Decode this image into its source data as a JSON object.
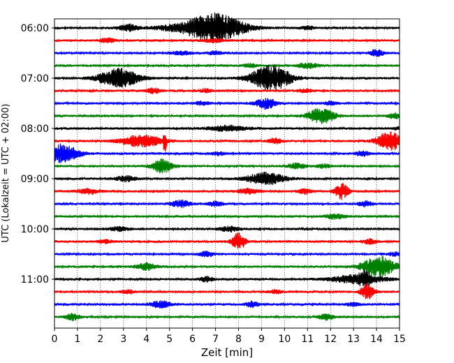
{
  "chart_data": {
    "type": "line",
    "title": "",
    "xlabel": "Zeit  [min]",
    "ylabel": "UTC (Lokalzeit = UTC + 02:00)",
    "xlim": [
      0,
      15
    ],
    "x_ticks": [
      "0",
      "1",
      "2",
      "3",
      "4",
      "5",
      "6",
      "7",
      "8",
      "9",
      "10",
      "11",
      "12",
      "13",
      "14",
      "15"
    ],
    "y_tick_labels": [
      "06:00",
      "07:00",
      "08:00",
      "09:00",
      "10:00",
      "11:00"
    ],
    "grid": "vertical dotted",
    "line_colors": [
      "#000000",
      "#ff0000",
      "#0000ff",
      "#008000"
    ],
    "traces": [
      {
        "start": "06:00",
        "color": "#000000",
        "bursts": [
          [
            3.2,
            0.3,
            0.4
          ],
          [
            6.9,
            0.9,
            1.7
          ],
          [
            4.8,
            0.4,
            0.2
          ],
          [
            11.0,
            0.2,
            0.2
          ]
        ]
      },
      {
        "start": "06:15",
        "color": "#ff0000",
        "bursts": [
          [
            2.3,
            0.2,
            0.3
          ],
          [
            6.9,
            0.3,
            0.2
          ]
        ]
      },
      {
        "start": "06:30",
        "color": "#0000ff",
        "bursts": [
          [
            5.5,
            0.3,
            0.2
          ],
          [
            7.0,
            0.2,
            0.2
          ],
          [
            14.0,
            0.2,
            0.4
          ]
        ]
      },
      {
        "start": "06:45",
        "color": "#008000",
        "bursts": [
          [
            11.0,
            0.3,
            0.3
          ],
          [
            8.5,
            0.2,
            0.2
          ]
        ]
      },
      {
        "start": "07:00",
        "color": "#000000",
        "bursts": [
          [
            2.8,
            0.6,
            1.1
          ],
          [
            9.4,
            0.6,
            1.5
          ]
        ]
      },
      {
        "start": "07:15",
        "color": "#ff0000",
        "bursts": [
          [
            4.3,
            0.2,
            0.3
          ],
          [
            6.6,
            0.2,
            0.2
          ],
          [
            10.9,
            0.2,
            0.2
          ]
        ]
      },
      {
        "start": "07:30",
        "color": "#0000ff",
        "bursts": [
          [
            6.4,
            0.2,
            0.2
          ],
          [
            9.2,
            0.3,
            0.6
          ],
          [
            12.0,
            0.2,
            0.2
          ]
        ]
      },
      {
        "start": "07:45",
        "color": "#008000",
        "bursts": [
          [
            11.6,
            0.4,
            0.9
          ],
          [
            14.8,
            0.2,
            0.3
          ]
        ]
      },
      {
        "start": "08:00",
        "color": "#000000",
        "bursts": [
          [
            7.5,
            0.6,
            0.3
          ],
          [
            14.9,
            0.1,
            0.2
          ]
        ]
      },
      {
        "start": "08:15",
        "color": "#ff0000",
        "bursts": [
          [
            3.8,
            0.6,
            0.7
          ],
          [
            4.8,
            0.05,
            1.3
          ],
          [
            9.6,
            0.2,
            0.3
          ],
          [
            14.6,
            0.4,
            1.1
          ]
        ]
      },
      {
        "start": "08:30",
        "color": "#0000ff",
        "bursts": [
          [
            0.3,
            0.5,
            1.1
          ],
          [
            7.1,
            0.2,
            0.2
          ],
          [
            13.4,
            0.2,
            0.3
          ]
        ]
      },
      {
        "start": "08:45",
        "color": "#008000",
        "bursts": [
          [
            4.7,
            0.3,
            0.8
          ],
          [
            10.5,
            0.3,
            0.3
          ],
          [
            11.7,
            0.2,
            0.2
          ]
        ]
      },
      {
        "start": "09:00",
        "color": "#000000",
        "bursts": [
          [
            3.1,
            0.3,
            0.3
          ],
          [
            9.2,
            0.6,
            0.7
          ]
        ]
      },
      {
        "start": "09:15",
        "color": "#ff0000",
        "bursts": [
          [
            1.5,
            0.3,
            0.3
          ],
          [
            12.5,
            0.2,
            0.9
          ],
          [
            10.9,
            0.2,
            0.3
          ],
          [
            8.4,
            0.3,
            0.3
          ]
        ]
      },
      {
        "start": "09:30",
        "color": "#0000ff",
        "bursts": [
          [
            5.5,
            0.3,
            0.4
          ],
          [
            7.0,
            0.2,
            0.3
          ],
          [
            13.5,
            0.2,
            0.3
          ]
        ]
      },
      {
        "start": "09:45",
        "color": "#008000",
        "bursts": [
          [
            12.2,
            0.3,
            0.3
          ]
        ]
      },
      {
        "start": "10:00",
        "color": "#000000",
        "bursts": [
          [
            7.6,
            0.3,
            0.3
          ],
          [
            2.8,
            0.3,
            0.2
          ]
        ]
      },
      {
        "start": "10:15",
        "color": "#ff0000",
        "bursts": [
          [
            8.0,
            0.2,
            1.0
          ],
          [
            13.7,
            0.2,
            0.3
          ],
          [
            2.2,
            0.2,
            0.2
          ]
        ]
      },
      {
        "start": "10:30",
        "color": "#0000ff",
        "bursts": [
          [
            6.6,
            0.2,
            0.3
          ],
          [
            14.8,
            0.2,
            0.2
          ]
        ]
      },
      {
        "start": "10:45",
        "color": "#008000",
        "bursts": [
          [
            4.0,
            0.3,
            0.4
          ],
          [
            14.1,
            0.5,
            1.2
          ]
        ]
      },
      {
        "start": "11:00",
        "color": "#000000",
        "bursts": [
          [
            6.6,
            0.2,
            0.3
          ],
          [
            13.2,
            0.8,
            0.5
          ],
          [
            13.5,
            0.15,
            0.7
          ]
        ]
      },
      {
        "start": "11:15",
        "color": "#ff0000",
        "bursts": [
          [
            13.6,
            0.2,
            0.9
          ],
          [
            3.2,
            0.2,
            0.2
          ],
          [
            9.6,
            0.2,
            0.2
          ]
        ]
      },
      {
        "start": "11:30",
        "color": "#0000ff",
        "bursts": [
          [
            4.6,
            0.3,
            0.4
          ],
          [
            8.6,
            0.2,
            0.3
          ],
          [
            13.0,
            0.2,
            0.2
          ]
        ]
      },
      {
        "start": "11:45",
        "color": "#008000",
        "bursts": [
          [
            0.8,
            0.2,
            0.4
          ],
          [
            11.8,
            0.2,
            0.4
          ]
        ]
      }
    ]
  }
}
